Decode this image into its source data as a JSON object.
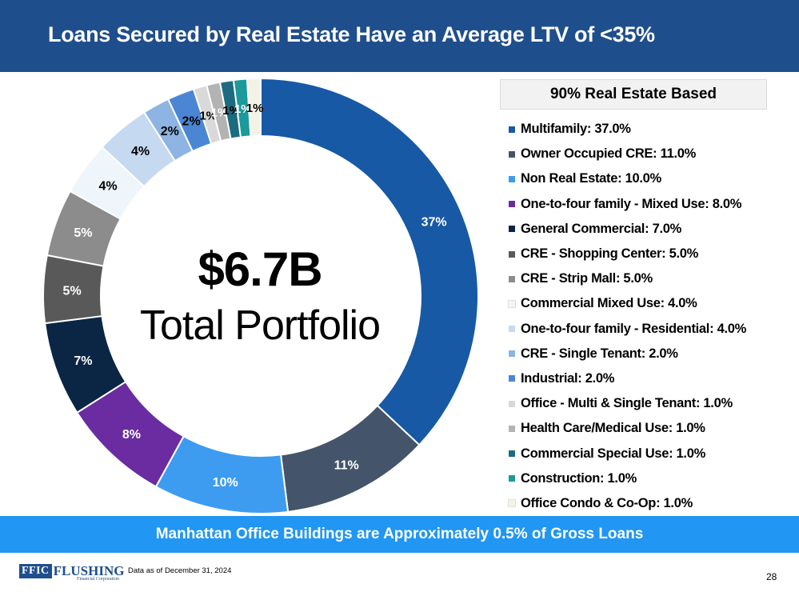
{
  "header": {
    "title": "Loans Secured by Real Estate Have an Average LTV of <35%"
  },
  "center": {
    "amount": "$6.7B",
    "label": "Total Portfolio"
  },
  "legend_title": "90% Real Estate Based",
  "chart_data": {
    "type": "pie",
    "donut": true,
    "slices": [
      {
        "label": "Multifamily",
        "value": 37.0,
        "legend_text": "Multifamily: 37.0%",
        "data_label": "37%",
        "color": "#1759a5",
        "label_color": "#ffffff"
      },
      {
        "label": "Owner Occupied CRE",
        "value": 11.0,
        "legend_text": "Owner Occupied CRE: 11.0%",
        "data_label": "11%",
        "color": "#44546a",
        "label_color": "#ffffff"
      },
      {
        "label": "Non Real Estate",
        "value": 10.0,
        "legend_text": "Non Real Estate: 10.0%",
        "data_label": "10%",
        "color": "#3d9cf0",
        "label_color": "#ffffff"
      },
      {
        "label": "One-to-four family - Mixed Use",
        "value": 8.0,
        "legend_text": "One-to-four family - Mixed Use: 8.0%",
        "data_label": "8%",
        "color": "#6a2ca0",
        "label_color": "#ffffff"
      },
      {
        "label": "General Commercial",
        "value": 7.0,
        "legend_text": "General Commercial: 7.0%",
        "data_label": "7%",
        "color": "#0b2544",
        "label_color": "#ffffff"
      },
      {
        "label": "CRE - Shopping Center",
        "value": 5.0,
        "legend_text": "CRE - Shopping Center: 5.0%",
        "data_label": "5%",
        "color": "#595959",
        "label_color": "#ffffff"
      },
      {
        "label": "CRE - Strip Mall",
        "value": 5.0,
        "legend_text": "CRE - Strip Mall: 5.0%",
        "data_label": "5%",
        "color": "#8c8c8c",
        "label_color": "#ffffff"
      },
      {
        "label": "Commercial Mixed Use",
        "value": 4.0,
        "legend_text": "Commercial Mixed Use: 4.0%",
        "data_label": "4%",
        "color": "#eef5fb",
        "label_color": "#000000"
      },
      {
        "label": "One-to-four family - Residential",
        "value": 4.0,
        "legend_text": "One-to-four family - Residential: 4.0%",
        "data_label": "4%",
        "color": "#c5d9f1",
        "label_color": "#000000"
      },
      {
        "label": "CRE - Single Tenant",
        "value": 2.0,
        "legend_text": "CRE - Single Tenant: 2.0%",
        "data_label": "2%",
        "color": "#8db4e2",
        "label_color": "#000000"
      },
      {
        "label": "Industrial",
        "value": 2.0,
        "legend_text": "Industrial: 2.0%",
        "data_label": "2%",
        "color": "#4a86d4",
        "label_color": "#000000"
      },
      {
        "label": "Office - Multi & Single Tenant",
        "value": 1.0,
        "legend_text": "Office - Multi & Single Tenant: 1.0%",
        "data_label": "1%",
        "color": "#d9d9d9",
        "label_color": "#000000"
      },
      {
        "label": "Health Care/Medical Use",
        "value": 1.0,
        "legend_text": "Health Care/Medical Use: 1.0%",
        "data_label": "1%",
        "color": "#b3b3b3",
        "label_color": "#ffffff"
      },
      {
        "label": "Commercial Special Use",
        "value": 1.0,
        "legend_text": "Commercial Special Use: 1.0%",
        "data_label": "1%",
        "color": "#1d6b80",
        "label_color": "#000000"
      },
      {
        "label": "Construction",
        "value": 1.0,
        "legend_text": "Construction: 1.0%",
        "data_label": "1%",
        "color": "#1a9a9a",
        "label_color": "#ffffff"
      },
      {
        "label": "Office Condo & Co-Op",
        "value": 1.0,
        "legend_text": "Office Condo & Co-Op: 1.0%",
        "data_label": "1%",
        "color": "#f2f2e6",
        "label_color": "#000000"
      }
    ]
  },
  "banner": {
    "text": "Manhattan Office Buildings are Approximately 0.5% of Gross Loans"
  },
  "footer": {
    "logo_mark": "FFIC",
    "logo_name": "FLUSHING",
    "logo_sub": "Financial Corporation",
    "note": "Data as of December 31, 2024",
    "page": "28"
  },
  "colors": {
    "title_bar": "#1f4e8c",
    "banner": "#2196f3"
  }
}
